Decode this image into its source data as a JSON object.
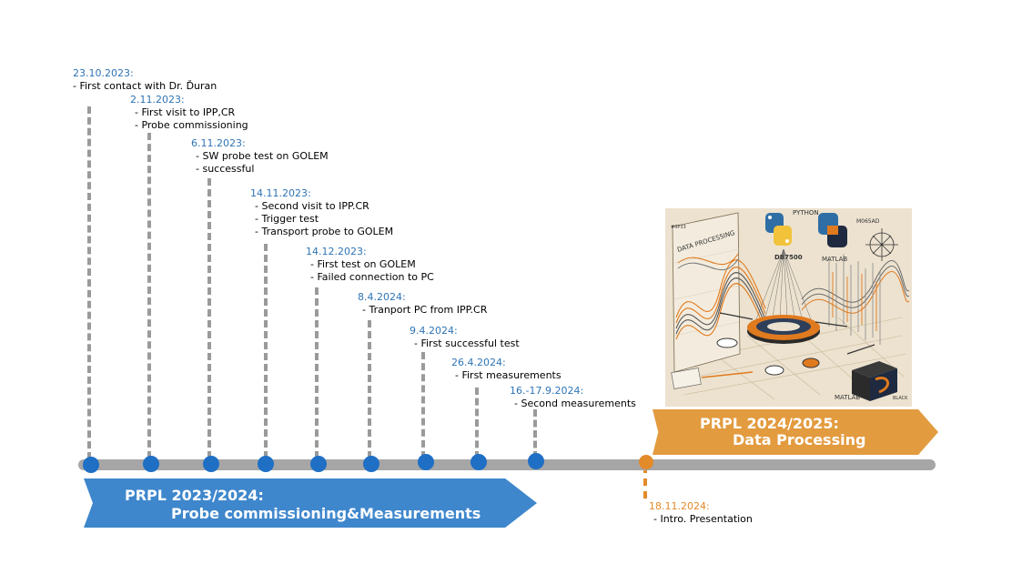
{
  "events": [
    {
      "date": "23.10.2023:",
      "items": [
        "-  First contact with Dr. Ďuran"
      ]
    },
    {
      "date": "2.11.2023:",
      "items": [
        "- First visit to IPP,CR",
        "- Probe commissioning"
      ]
    },
    {
      "date": "6.11.2023:",
      "items": [
        "- SW probe test on GOLEM",
        "- successful"
      ]
    },
    {
      "date": "14.11.2023:",
      "items": [
        "- Second visit to IPP.CR",
        "- Trigger test",
        "- Transport probe to GOLEM"
      ]
    },
    {
      "date": "14.12.2023:",
      "items": [
        "- First test on GOLEM",
        "- Failed connection to PC"
      ]
    },
    {
      "date": "8.4.2024:",
      "items": [
        "- Tranport PC from IPP.CR"
      ]
    },
    {
      "date": "9.4.2024:",
      "items": [
        "- First successful test"
      ]
    },
    {
      "date": "26.4.2024:",
      "items": [
        "- First measurements"
      ]
    },
    {
      "date": "16.-17.9.2024:",
      "items": [
        "- Second measurements"
      ]
    }
  ],
  "future_event": {
    "date": "18.11.2024:",
    "items": [
      "- Intro. Presentation"
    ]
  },
  "phase1": {
    "line1": "PRPL 2023/2024:",
    "line2": "Probe commissioning&Measurements"
  },
  "phase2": {
    "line1": "PRPL 2024/2025:",
    "line2": "Data Processing"
  },
  "illustration": {
    "labels": {
      "data_processing": "DATA PROCESSING",
      "python": "PYTHON",
      "db7500": "DB7500",
      "matlab": "MATLAB",
      "matlab2": "MATLAB",
      "black": "BLACK",
      "code1": "#0P33",
      "code2": "M065AD"
    }
  },
  "colors": {
    "date_blue": "#2e74b5",
    "date_orange": "#e38a2a",
    "dot_blue": "#1f6fc5",
    "axis_gray": "#a6a6a6",
    "phase1_blue": "#3f87cc",
    "phase2_orange": "#e39b3f"
  }
}
